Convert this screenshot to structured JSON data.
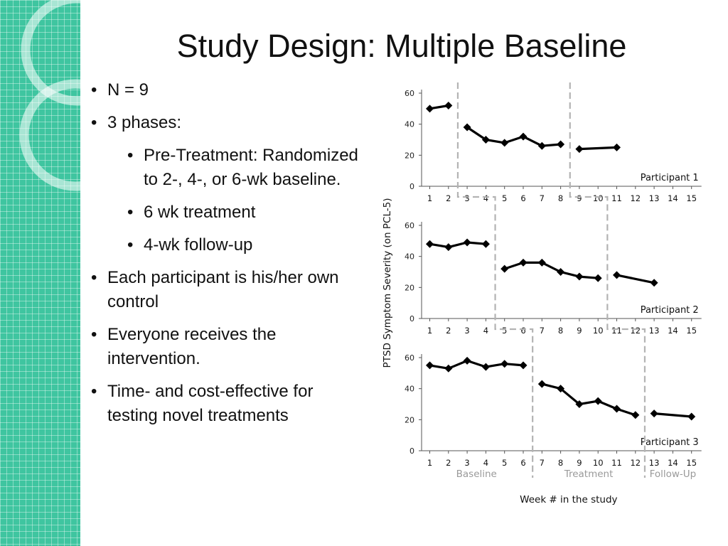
{
  "slide": {
    "title": "Study Design: Multiple Baseline",
    "bullets": [
      {
        "text": "N = 9",
        "level": 1
      },
      {
        "text": "3 phases:",
        "level": 1
      },
      {
        "text": "Pre-Treatment: Randomized to 2-, 4-, or 6-wk baseline.",
        "level": 2
      },
      {
        "text": "6 wk treatment",
        "level": 2
      },
      {
        "text": "4-wk follow-up",
        "level": 2
      },
      {
        "text": "Each participant is his/her own control",
        "level": 1
      },
      {
        "text": "Everyone receives the intervention.",
        "level": 1
      },
      {
        "text": "Time- and cost-effective for testing novel treatments",
        "level": 1
      }
    ]
  },
  "colors": {
    "sidebar": "#3fc5a0",
    "line": "#000000",
    "divider": "#b3b3b3",
    "phase_label": "#9a9a9a"
  },
  "chart_data": {
    "type": "line",
    "ylabel": "PTSD Symptom Severity (on PCL-5)",
    "xlabel": "Week # in the study",
    "ylim": [
      0,
      60
    ],
    "yticks": [
      0,
      20,
      40,
      60
    ],
    "xticks": [
      1,
      2,
      3,
      4,
      5,
      6,
      7,
      8,
      9,
      10,
      11,
      12,
      13,
      14,
      15
    ],
    "phase_labels": [
      {
        "text": "Baseline",
        "x": 3.5
      },
      {
        "text": "Treatment",
        "x": 9.5
      },
      {
        "text": "Follow-Up",
        "x": 14.0
      }
    ],
    "panels": [
      {
        "name": "Participant 1",
        "phase_changes": [
          2.5,
          8.5
        ],
        "segments": [
          {
            "x": [
              1,
              2
            ],
            "y": [
              50,
              52
            ]
          },
          {
            "x": [
              3,
              4,
              5,
              6,
              7,
              8
            ],
            "y": [
              38,
              30,
              28,
              32,
              26,
              27
            ]
          },
          {
            "x": [
              9,
              11
            ],
            "y": [
              24,
              25
            ]
          }
        ]
      },
      {
        "name": "Participant 2",
        "phase_changes": [
          4.5,
          10.5
        ],
        "segments": [
          {
            "x": [
              1,
              2,
              3,
              4
            ],
            "y": [
              48,
              46,
              49,
              48
            ]
          },
          {
            "x": [
              5,
              6,
              7,
              8,
              9,
              10
            ],
            "y": [
              32,
              36,
              36,
              30,
              27,
              26
            ]
          },
          {
            "x": [
              11,
              13
            ],
            "y": [
              28,
              23
            ]
          }
        ]
      },
      {
        "name": "Participant 3",
        "phase_changes": [
          6.5,
          12.5
        ],
        "segments": [
          {
            "x": [
              1,
              2,
              3,
              4,
              5,
              6
            ],
            "y": [
              55,
              53,
              58,
              54,
              56,
              55
            ]
          },
          {
            "x": [
              7,
              8,
              9,
              10,
              11,
              12
            ],
            "y": [
              43,
              40,
              30,
              32,
              27,
              23
            ]
          },
          {
            "x": [
              13,
              15
            ],
            "y": [
              24,
              22
            ]
          }
        ]
      }
    ]
  }
}
